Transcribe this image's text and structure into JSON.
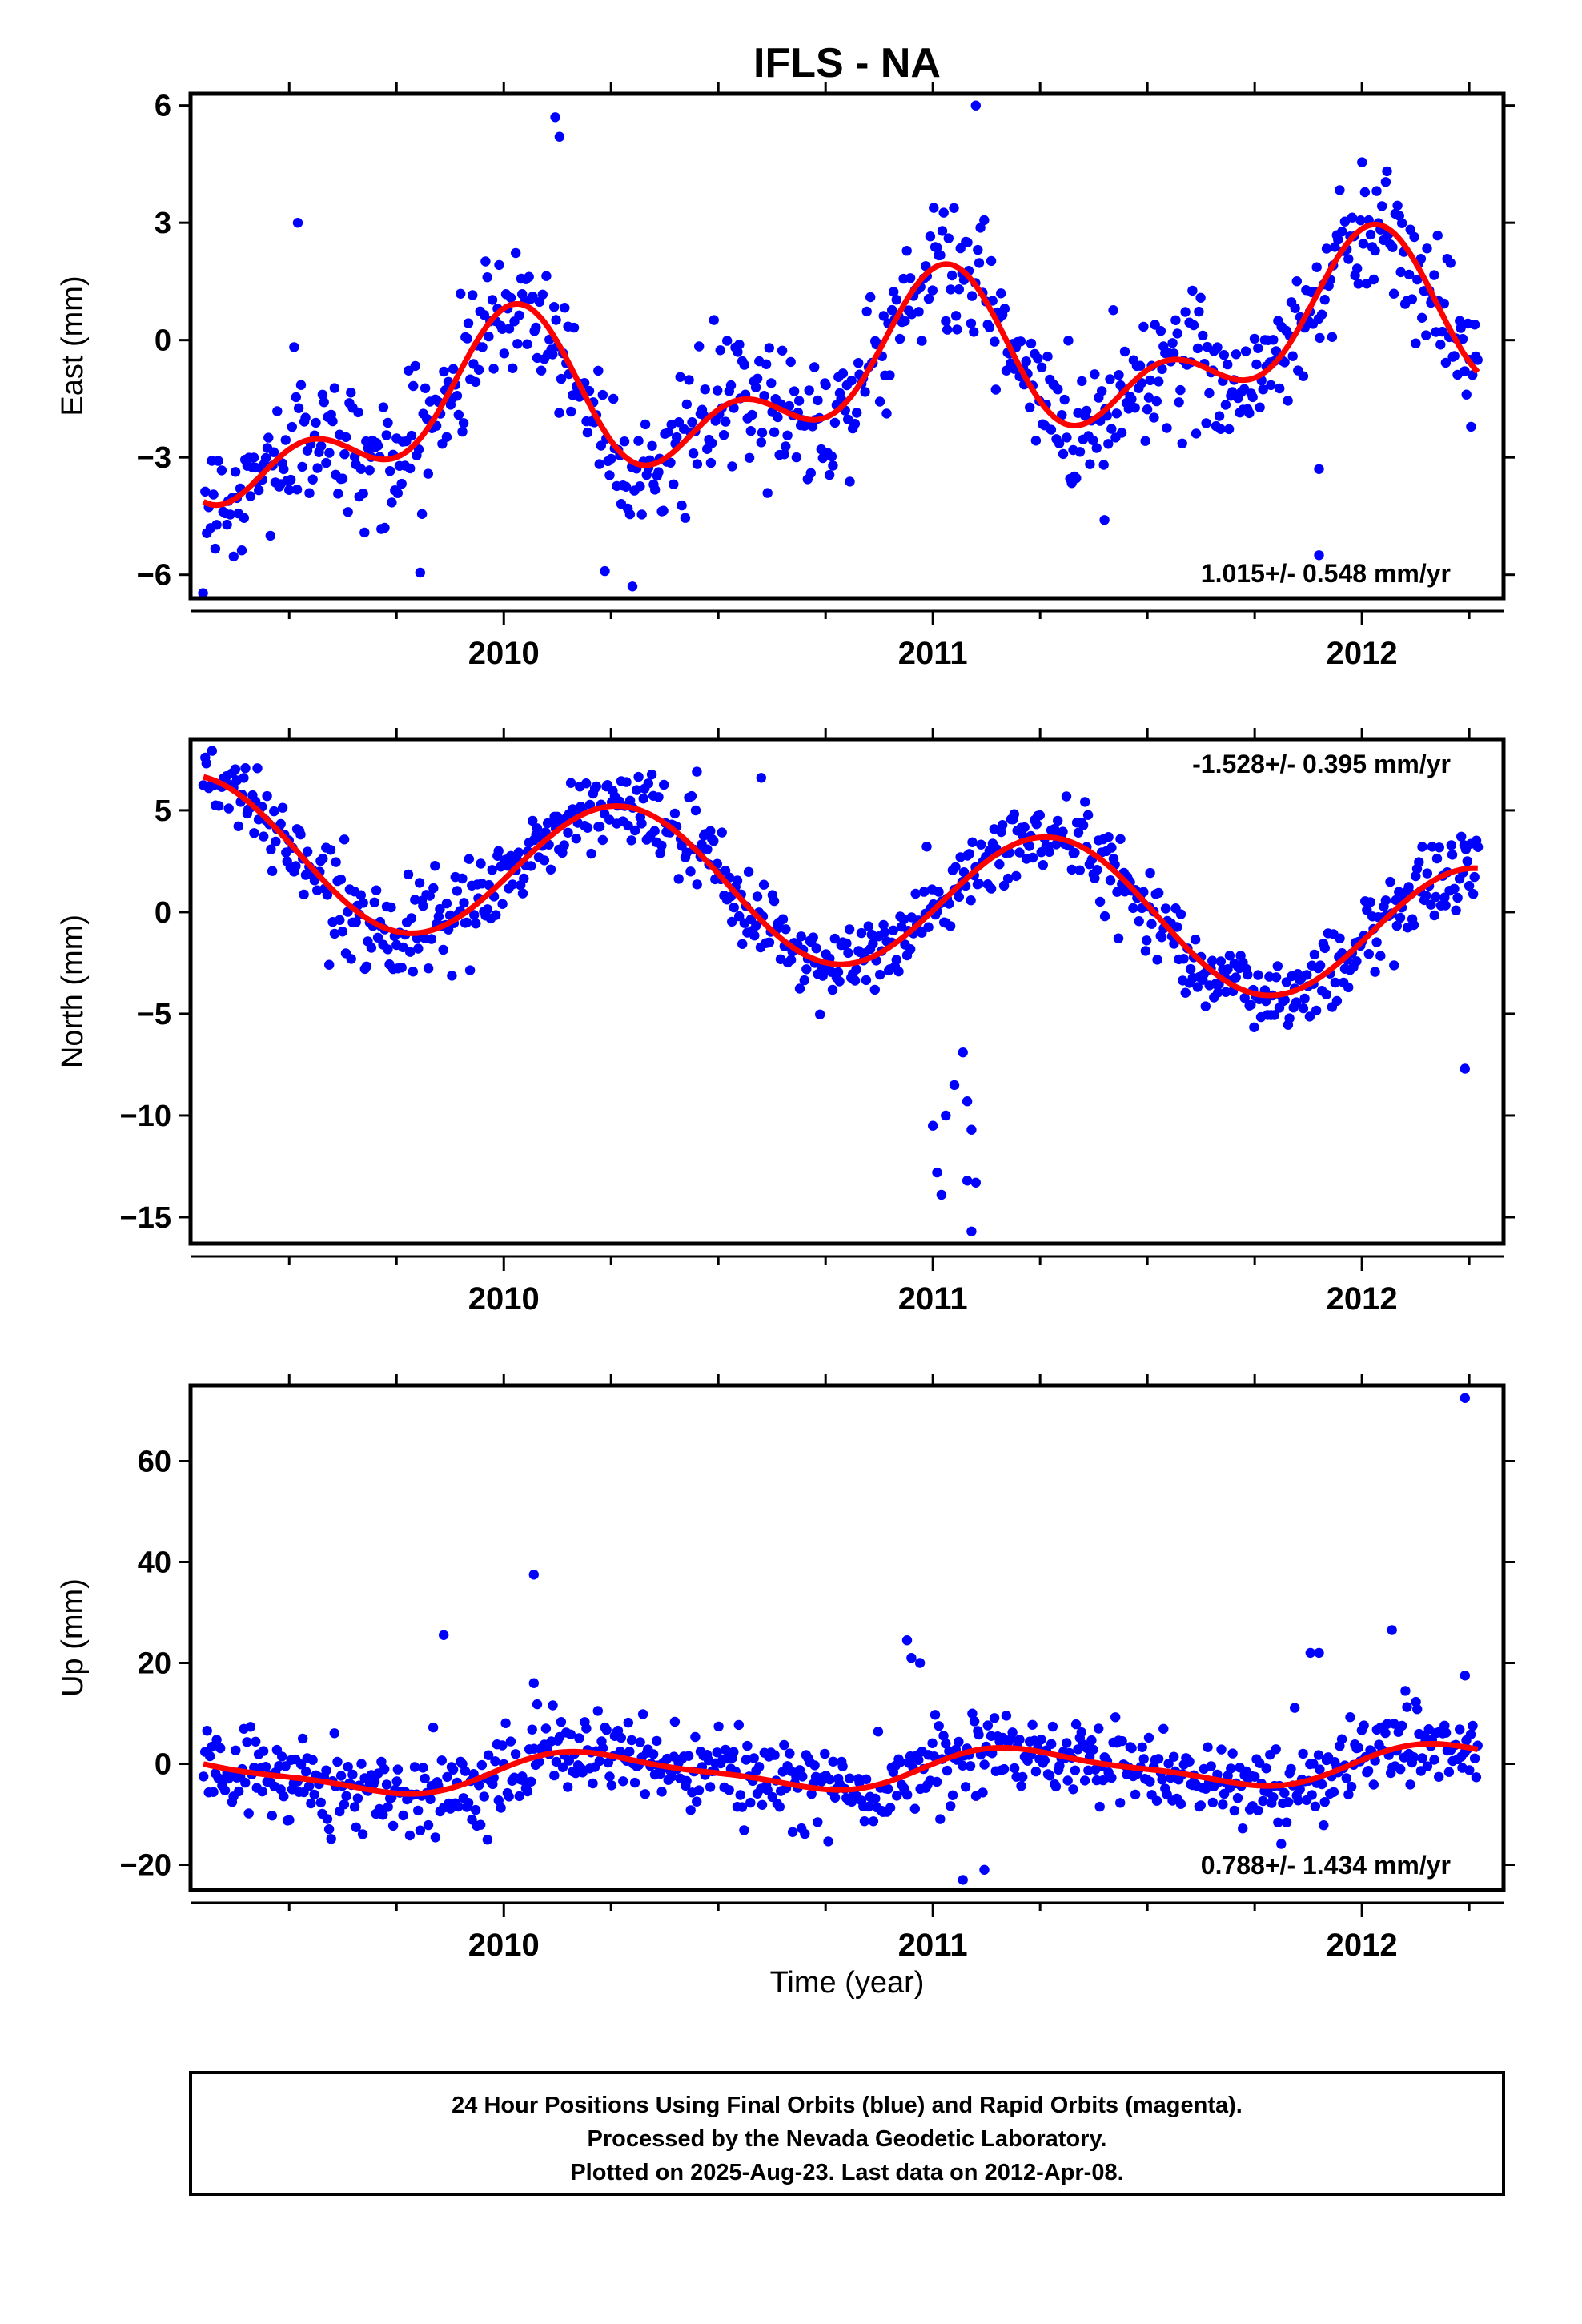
{
  "title": "IFLS - NA",
  "colors": {
    "points": "#0000ff",
    "fit": "#ff0000",
    "frame": "#000000",
    "background": "#ffffff"
  },
  "chart_data": [
    {
      "type": "scatter",
      "id": "east",
      "ylabel": "East (mm)",
      "xlim": [
        2009.27,
        2012.33
      ],
      "ylim": [
        -6.6,
        6.3
      ],
      "xticks": [
        2010,
        2011,
        2012
      ],
      "xtick_labels": [
        "2010",
        "2011",
        "2012"
      ],
      "yticks": [
        -6,
        -3,
        0,
        3,
        6
      ],
      "ytick_labels": [
        "−6",
        "−3",
        "0",
        "3",
        "6"
      ],
      "rate_label": "1.015+/- 0.548 mm/yr",
      "rate_position": "bottom-right",
      "fit": {
        "trend": 1.015,
        "offset": -0.95,
        "annual_amp": 1.55,
        "annual_phase": 1.6,
        "semi_amp": 1.15,
        "semi_phase": 1.1
      },
      "scatter": {
        "noise": 0.85,
        "start": 2009.3,
        "end": 2012.27,
        "count": 760
      },
      "outliers": [
        [
          2010.12,
          5.7
        ],
        [
          2010.13,
          5.2
        ],
        [
          2011.1,
          6.0
        ],
        [
          2010.3,
          -6.3
        ],
        [
          2011.4,
          -4.6
        ],
        [
          2011.9,
          -5.5
        ],
        [
          2011.9,
          -3.3
        ],
        [
          2009.52,
          3.0
        ]
      ]
    },
    {
      "type": "scatter",
      "id": "north",
      "ylabel": "North (mm)",
      "xlim": [
        2009.27,
        2012.33
      ],
      "ylim": [
        -16.3,
        8.5
      ],
      "xticks": [
        2010,
        2011,
        2012
      ],
      "xtick_labels": [
        "2010",
        "2011",
        "2012"
      ],
      "yticks": [
        -15,
        -10,
        -5,
        0,
        5
      ],
      "ytick_labels": [
        "−15",
        "−10",
        "−5",
        "0",
        "5"
      ],
      "rate_label": "-1.528+/- 0.395 mm/yr",
      "rate_position": "top-right",
      "fit": {
        "trend": -1.528,
        "offset": 0.9,
        "annual_amp": 3.5,
        "annual_phase": -0.15,
        "semi_amp": 0.0,
        "semi_phase": 0.0
      },
      "scatter": {
        "noise": 1.0,
        "start": 2009.3,
        "end": 2012.27,
        "count": 760
      },
      "outliers": [
        [
          2011.0,
          -10.5
        ],
        [
          2011.01,
          -12.8
        ],
        [
          2011.02,
          -13.9
        ],
        [
          2011.03,
          -10.0
        ],
        [
          2011.05,
          -8.5
        ],
        [
          2011.07,
          -6.9
        ],
        [
          2011.08,
          -9.3
        ],
        [
          2011.08,
          -13.2
        ],
        [
          2011.09,
          -10.7
        ],
        [
          2011.09,
          -15.7
        ],
        [
          2011.1,
          -13.3
        ],
        [
          2012.24,
          -7.7
        ],
        [
          2010.45,
          6.9
        ],
        [
          2010.6,
          6.6
        ]
      ]
    },
    {
      "type": "scatter",
      "id": "up",
      "ylabel": "Up (mm)",
      "xlabel": "Time (year)",
      "xlim": [
        2009.27,
        2012.33
      ],
      "ylim": [
        -25,
        75
      ],
      "xticks": [
        2010,
        2011,
        2012
      ],
      "xtick_labels": [
        "2010",
        "2011",
        "2012"
      ],
      "yticks": [
        -20,
        0,
        20,
        40,
        60
      ],
      "ytick_labels": [
        "−20",
        "0",
        "20",
        "40",
        "60"
      ],
      "rate_label": "0.788+/- 1.434 mm/yr",
      "rate_position": "bottom-right",
      "fit": {
        "trend": 0.788,
        "offset": -1.2,
        "annual_amp": 3.6,
        "annual_phase": 0.2,
        "semi_amp": 1.0,
        "semi_phase": 0.3
      },
      "scatter": {
        "noise": 4.0,
        "start": 2009.3,
        "end": 2012.27,
        "count": 760
      },
      "outliers": [
        [
          2012.24,
          72.5
        ],
        [
          2010.07,
          37.5
        ],
        [
          2009.86,
          25.5
        ],
        [
          2010.07,
          16.0
        ],
        [
          2010.94,
          24.5
        ],
        [
          2010.95,
          21.0
        ],
        [
          2010.97,
          20.0
        ],
        [
          2011.88,
          22.0
        ],
        [
          2011.9,
          22.0
        ],
        [
          2012.07,
          26.5
        ],
        [
          2012.24,
          17.5
        ],
        [
          2011.07,
          -23.0
        ],
        [
          2011.12,
          -21.0
        ]
      ]
    }
  ],
  "footer": {
    "line1": "24 Hour Positions Using Final Orbits (blue) and Rapid Orbits (magenta).",
    "line2": "Processed by the Nevada Geodetic Laboratory.",
    "line3": "Plotted on 2025-Aug-23. Last data on 2012-Apr-08."
  }
}
